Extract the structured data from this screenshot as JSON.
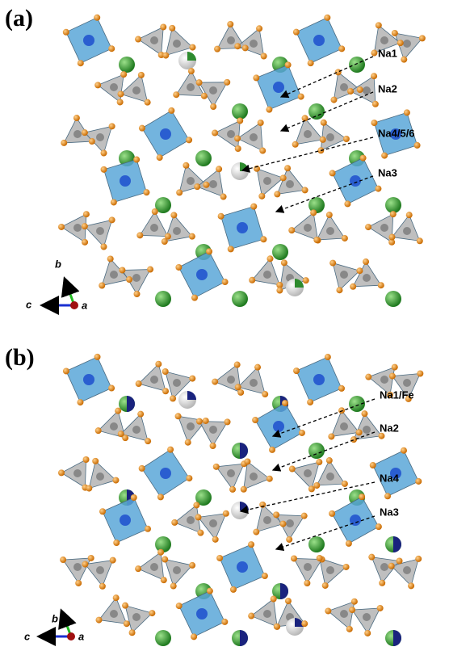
{
  "panels": [
    {
      "label": "(a)",
      "sites": [
        "Na1",
        "Na2",
        "Na4/5/6",
        "Na3"
      ],
      "axes": {
        "b": "b",
        "c": "c",
        "a": "a"
      }
    },
    {
      "label": "(b)",
      "sites": [
        "Na1/Fe",
        "Na2",
        "Na4",
        "Na3"
      ],
      "axes": {
        "b": "b",
        "c": "c",
        "a": "a"
      }
    }
  ]
}
